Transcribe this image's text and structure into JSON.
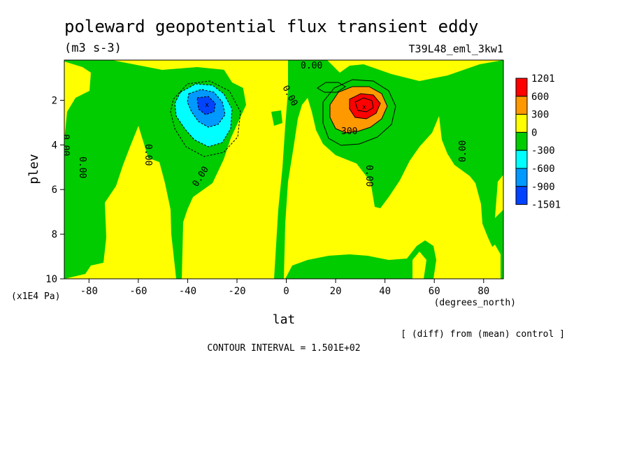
{
  "chart_data": {
    "type": "heatmap",
    "title": "poleward geopotential flux transient eddy",
    "units": "(m3 s-3)",
    "run_label": "T39L48_eml_3kw1",
    "xlabel": "lat",
    "x_unit_label": "(degrees_north)",
    "ylabel": "plev",
    "y_unit_label": "(x1E4 Pa)",
    "xlim": [
      -90,
      88
    ],
    "ylim": [
      10,
      0.2
    ],
    "x_ticks": [
      -80,
      -60,
      -40,
      -20,
      0,
      20,
      40,
      60,
      80
    ],
    "x_tick_labels": [
      "-80",
      "-60",
      "-40",
      "-20",
      "0",
      "20",
      "40",
      "60",
      "80"
    ],
    "y_ticks": [
      2,
      4,
      6,
      8,
      10
    ],
    "y_tick_labels": [
      "2",
      "4",
      "6",
      "8",
      "10"
    ],
    "colorbar": {
      "labels": [
        "1201",
        "600",
        "300",
        "0",
        "-300",
        "-600",
        "-900",
        "-1501"
      ],
      "colors": [
        "#ff0000",
        "#ff9900",
        "#ffff00",
        "#00cc00",
        "#00ffff",
        "#0099ff",
        "#0044ff"
      ]
    },
    "features": [
      {
        "type": "min",
        "lat": -31,
        "plev": 2.1,
        "value": -1501
      },
      {
        "type": "max",
        "lat": 32,
        "plev": 2.3,
        "value": 1201
      }
    ],
    "contour_labels": [
      "0.00",
      "300"
    ],
    "note": "[ (diff) from (mean) control ]",
    "contour_interval": "CONTOUR INTERVAL = 1.501E+02"
  }
}
